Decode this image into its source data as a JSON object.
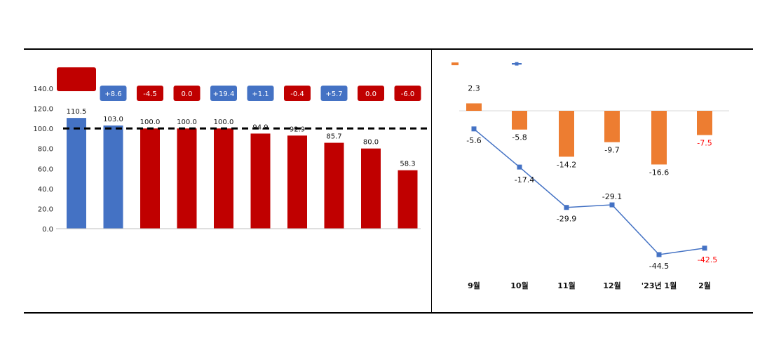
{
  "titles": {
    "left": "",
    "right": ""
  },
  "sources": {
    "left": "",
    "right": ""
  },
  "chart_data": [
    {
      "type": "bar",
      "title": "",
      "categories": [
        "",
        "",
        "",
        "",
        "",
        "",
        "",
        "",
        "",
        ""
      ],
      "values": [
        110.5,
        103.0,
        100.0,
        100.0,
        100.0,
        94.9,
        92.9,
        85.7,
        80.0,
        58.3
      ],
      "value_labels": [
        "110.5",
        "103.0",
        "100.0",
        "100.0",
        "100.0",
        "94.9",
        "92.9",
        "85.7",
        "80.0",
        "58.3"
      ],
      "changes": [
        "",
        "+8.6",
        "-4.5",
        "0.0",
        "+19.4",
        "+1.1",
        "-0.4",
        "+5.7",
        "0.0",
        "-6.0"
      ],
      "first_change_label": [
        "",
        ""
      ],
      "bar_colors": [
        "#4472c4",
        "#4472c4",
        "#c00000",
        "#c00000",
        "#c00000",
        "#c00000",
        "#c00000",
        "#c00000",
        "#c00000",
        "#c00000"
      ],
      "badge_colors": [
        "#c00000",
        "#4472c4",
        "#c00000",
        "#c00000",
        "#4472c4",
        "#4472c4",
        "#c00000",
        "#4472c4",
        "#c00000",
        "#c00000"
      ],
      "yticks": [
        "0.0",
        "20.0",
        "40.0",
        "60.0",
        "80.0",
        "100.0",
        "120.0",
        "140.0"
      ],
      "ylim": [
        0,
        140
      ],
      "baseline": 100,
      "baseline_label": "",
      "grid": false
    },
    {
      "type": "bar+line",
      "title": "",
      "unit_note": "",
      "categories": [
        "9월",
        "10월",
        "11월",
        "12월",
        "'23년 1월",
        "2월"
      ],
      "series": [
        {
          "name": "",
          "type": "bar",
          "color": "#ed7d31",
          "values": [
            2.3,
            -5.8,
            -14.2,
            -9.7,
            -16.6,
            -7.5
          ],
          "labels": [
            "2.3",
            "-5.8",
            "-14.2",
            "-9.7",
            "-16.6",
            "-7.5"
          ],
          "label_colors": [
            "#111111",
            "#111111",
            "#111111",
            "#111111",
            "#111111",
            "#ff0000"
          ]
        },
        {
          "name": "",
          "type": "line",
          "color": "#4472c4",
          "values": [
            -5.6,
            -17.4,
            -29.9,
            -29.1,
            -44.5,
            -42.5
          ],
          "labels": [
            "-5.6",
            "-17.4",
            "-29.9",
            "-29.1",
            "-44.5",
            "-42.5"
          ],
          "label_colors": [
            "#111111",
            "#111111",
            "#111111",
            "#111111",
            "#111111",
            "#ff0000"
          ]
        }
      ],
      "ylim": [
        -50,
        5
      ],
      "legend": "top-left",
      "grid": false
    }
  ]
}
